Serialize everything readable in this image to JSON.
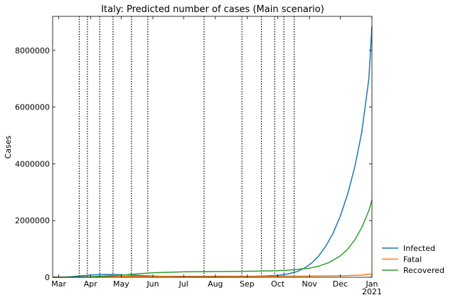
{
  "chart_data": {
    "type": "line",
    "title": "Italy: Predicted number of cases (Main scenario)",
    "xlabel": "",
    "ylabel": "Cases",
    "ylim": [
      0,
      9200000
    ],
    "xlim": [
      "2020-02-24",
      "2021-01-01"
    ],
    "y_ticks": [
      {
        "value": 0,
        "label": "0"
      },
      {
        "value": 2000000,
        "label": "2000000"
      },
      {
        "value": 4000000,
        "label": "4000000"
      },
      {
        "value": 6000000,
        "label": "6000000"
      },
      {
        "value": 8000000,
        "label": "8000000"
      }
    ],
    "x_ticks": [
      {
        "date": "2020-03-01",
        "label": "Mar"
      },
      {
        "date": "2020-04-01",
        "label": "Apr"
      },
      {
        "date": "2020-05-01",
        "label": "May"
      },
      {
        "date": "2020-06-01",
        "label": "Jun"
      },
      {
        "date": "2020-07-01",
        "label": "Jul"
      },
      {
        "date": "2020-08-01",
        "label": "Aug"
      },
      {
        "date": "2020-09-01",
        "label": "Sep"
      },
      {
        "date": "2020-10-01",
        "label": "Oct"
      },
      {
        "date": "2020-11-01",
        "label": "Nov"
      },
      {
        "date": "2020-12-01",
        "label": "Dec"
      },
      {
        "date": "2021-01-01",
        "label": "Jan",
        "sublabel": "2021"
      }
    ],
    "vlines": [
      "2020-03-21",
      "2020-03-29",
      "2020-04-10",
      "2020-04-23",
      "2020-05-11",
      "2020-05-27",
      "2020-07-21",
      "2020-08-27",
      "2020-09-15",
      "2020-09-28",
      "2020-10-07",
      "2020-10-17"
    ],
    "legend_position": "lower-right-outside",
    "series": [
      {
        "name": "Infected",
        "color": "#1f77b4",
        "points": [
          [
            "2020-02-24",
            0
          ],
          [
            "2020-03-10",
            10000
          ],
          [
            "2020-03-20",
            40000
          ],
          [
            "2020-04-01",
            80000
          ],
          [
            "2020-04-15",
            100000
          ],
          [
            "2020-05-01",
            90000
          ],
          [
            "2020-05-15",
            70000
          ],
          [
            "2020-06-01",
            40000
          ],
          [
            "2020-07-01",
            15000
          ],
          [
            "2020-08-01",
            12000
          ],
          [
            "2020-09-01",
            25000
          ],
          [
            "2020-09-15",
            40000
          ],
          [
            "2020-10-01",
            70000
          ],
          [
            "2020-10-10",
            110000
          ],
          [
            "2020-10-20",
            200000
          ],
          [
            "2020-10-27",
            320000
          ],
          [
            "2020-11-03",
            500000
          ],
          [
            "2020-11-10",
            750000
          ],
          [
            "2020-11-17",
            1100000
          ],
          [
            "2020-11-24",
            1550000
          ],
          [
            "2020-12-01",
            2150000
          ],
          [
            "2020-12-08",
            2900000
          ],
          [
            "2020-12-15",
            3850000
          ],
          [
            "2020-12-22",
            5100000
          ],
          [
            "2020-12-29",
            7000000
          ],
          [
            "2021-01-01",
            8850000
          ]
        ]
      },
      {
        "name": "Fatal",
        "color": "#ff7f0e",
        "points": [
          [
            "2020-02-24",
            0
          ],
          [
            "2020-03-15",
            2000
          ],
          [
            "2020-04-01",
            13000
          ],
          [
            "2020-05-01",
            28000
          ],
          [
            "2020-06-01",
            33500
          ],
          [
            "2020-08-01",
            35100
          ],
          [
            "2020-10-01",
            36000
          ],
          [
            "2020-11-01",
            40000
          ],
          [
            "2020-12-01",
            52000
          ],
          [
            "2020-12-22",
            75000
          ],
          [
            "2021-01-01",
            120000
          ]
        ]
      },
      {
        "name": "Recovered",
        "color": "#2ca02c",
        "points": [
          [
            "2020-02-24",
            0
          ],
          [
            "2020-03-15",
            5000
          ],
          [
            "2020-04-01",
            16000
          ],
          [
            "2020-05-01",
            75000
          ],
          [
            "2020-06-01",
            160000
          ],
          [
            "2020-07-01",
            190000
          ],
          [
            "2020-08-01",
            200000
          ],
          [
            "2020-09-01",
            210000
          ],
          [
            "2020-10-01",
            230000
          ],
          [
            "2020-10-15",
            260000
          ],
          [
            "2020-11-01",
            320000
          ],
          [
            "2020-11-10",
            390000
          ],
          [
            "2020-11-20",
            520000
          ],
          [
            "2020-12-01",
            750000
          ],
          [
            "2020-12-08",
            980000
          ],
          [
            "2020-12-15",
            1300000
          ],
          [
            "2020-12-22",
            1750000
          ],
          [
            "2020-12-29",
            2350000
          ],
          [
            "2021-01-01",
            2720000
          ]
        ]
      }
    ]
  }
}
